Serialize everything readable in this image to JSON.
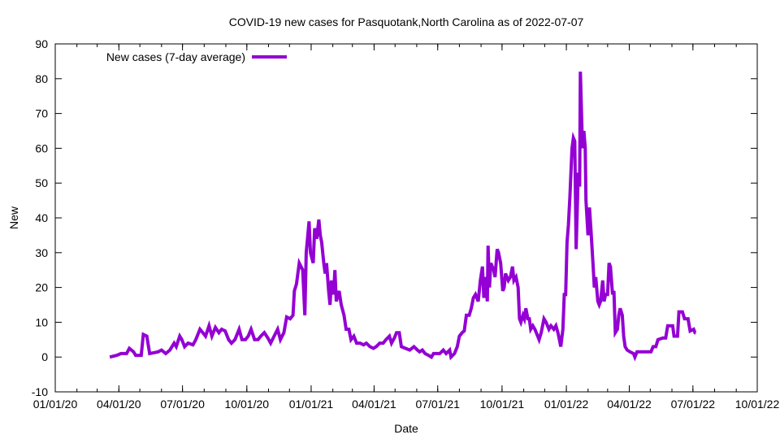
{
  "chart_data": {
    "type": "line",
    "title": "COVID-19 new cases for Pasquotank,North Carolina as of 2022-07-07",
    "xlabel": "Date",
    "ylabel": "New",
    "x_origin": "2020-01-01",
    "x_unit": "days since 2020-01-01",
    "xlim": [
      0,
      1004
    ],
    "ylim": [
      -10,
      90
    ],
    "y_ticks": [
      -10,
      0,
      10,
      20,
      30,
      40,
      50,
      60,
      70,
      80,
      90
    ],
    "x_ticks": [
      {
        "day": 0,
        "label": "01/01/20"
      },
      {
        "day": 91,
        "label": "04/01/20"
      },
      {
        "day": 182,
        "label": "07/01/20"
      },
      {
        "day": 274,
        "label": "10/01/20"
      },
      {
        "day": 366,
        "label": "01/01/21"
      },
      {
        "day": 456,
        "label": "04/01/21"
      },
      {
        "day": 547,
        "label": "07/01/21"
      },
      {
        "day": 639,
        "label": "10/01/21"
      },
      {
        "day": 731,
        "label": "01/01/22"
      },
      {
        "day": 821,
        "label": "04/01/22"
      },
      {
        "day": 912,
        "label": "07/01/22"
      },
      {
        "day": 1004,
        "label": "10/01/22"
      }
    ],
    "grid": false,
    "legend_position": "top-left",
    "series": [
      {
        "name": "New cases (7-day average)",
        "color": "#9400d3",
        "points": [
          [
            78,
            0
          ],
          [
            88,
            0.5
          ],
          [
            94,
            1
          ],
          [
            102,
            1
          ],
          [
            106,
            2.5
          ],
          [
            112,
            1.5
          ],
          [
            115,
            0.5
          ],
          [
            123,
            0.5
          ],
          [
            126,
            6.5
          ],
          [
            131,
            6
          ],
          [
            135,
            1
          ],
          [
            147,
            1.5
          ],
          [
            152,
            2
          ],
          [
            158,
            1
          ],
          [
            164,
            2
          ],
          [
            170,
            4
          ],
          [
            173,
            3
          ],
          [
            178,
            6
          ],
          [
            181,
            5
          ],
          [
            185,
            3
          ],
          [
            190,
            4
          ],
          [
            197,
            3.5
          ],
          [
            201,
            5
          ],
          [
            207,
            8
          ],
          [
            211,
            7
          ],
          [
            215,
            6
          ],
          [
            220,
            9
          ],
          [
            224,
            6
          ],
          [
            229,
            8.5
          ],
          [
            234,
            7
          ],
          [
            238,
            8
          ],
          [
            243,
            7.5
          ],
          [
            248,
            5
          ],
          [
            252,
            4
          ],
          [
            257,
            5
          ],
          [
            263,
            8
          ],
          [
            267,
            5
          ],
          [
            272,
            5
          ],
          [
            276,
            6
          ],
          [
            280,
            8
          ],
          [
            285,
            5
          ],
          [
            290,
            5
          ],
          [
            294,
            6
          ],
          [
            299,
            7
          ],
          [
            304,
            5.5
          ],
          [
            308,
            4
          ],
          [
            313,
            6
          ],
          [
            318,
            8
          ],
          [
            322,
            5
          ],
          [
            327,
            7
          ],
          [
            331,
            11.5
          ],
          [
            336,
            11
          ],
          [
            340,
            12
          ],
          [
            342,
            19
          ],
          [
            345,
            21
          ],
          [
            349,
            27
          ],
          [
            354,
            25
          ],
          [
            357,
            12
          ],
          [
            359,
            30
          ],
          [
            363,
            39
          ],
          [
            365,
            30
          ],
          [
            369,
            27
          ],
          [
            371,
            37
          ],
          [
            374,
            34
          ],
          [
            377,
            39.5
          ],
          [
            379,
            35
          ],
          [
            381,
            33
          ],
          [
            384,
            27
          ],
          [
            386,
            24
          ],
          [
            388,
            27
          ],
          [
            391,
            19
          ],
          [
            393,
            15
          ],
          [
            395,
            22
          ],
          [
            398,
            18
          ],
          [
            400,
            25
          ],
          [
            402,
            16
          ],
          [
            406,
            19
          ],
          [
            409,
            15
          ],
          [
            413,
            12
          ],
          [
            416,
            8
          ],
          [
            420,
            8
          ],
          [
            423,
            5
          ],
          [
            427,
            6
          ],
          [
            431,
            4
          ],
          [
            436,
            4
          ],
          [
            441,
            3.5
          ],
          [
            445,
            4
          ],
          [
            450,
            3
          ],
          [
            455,
            2.5
          ],
          [
            459,
            3
          ],
          [
            464,
            4
          ],
          [
            469,
            4
          ],
          [
            473,
            5
          ],
          [
            478,
            6
          ],
          [
            481,
            4
          ],
          [
            485,
            5.5
          ],
          [
            488,
            7
          ],
          [
            492,
            7
          ],
          [
            495,
            3
          ],
          [
            501,
            2.5
          ],
          [
            507,
            2
          ],
          [
            513,
            3
          ],
          [
            518,
            2
          ],
          [
            521,
            1.5
          ],
          [
            525,
            2
          ],
          [
            529,
            1
          ],
          [
            534,
            0.5
          ],
          [
            538,
            0
          ],
          [
            541,
            1
          ],
          [
            545,
            1
          ],
          [
            550,
            1
          ],
          [
            555,
            2
          ],
          [
            559,
            1
          ],
          [
            564,
            2
          ],
          [
            566,
            0
          ],
          [
            571,
            1
          ],
          [
            575,
            3
          ],
          [
            578,
            6
          ],
          [
            582,
            7
          ],
          [
            585,
            7.5
          ],
          [
            588,
            12
          ],
          [
            592,
            12
          ],
          [
            595,
            14
          ],
          [
            598,
            17
          ],
          [
            601,
            18
          ],
          [
            605,
            16
          ],
          [
            608,
            22
          ],
          [
            611,
            26
          ],
          [
            613,
            17
          ],
          [
            615,
            23
          ],
          [
            618,
            16
          ],
          [
            619,
            32
          ],
          [
            621,
            20
          ],
          [
            623,
            27
          ],
          [
            627,
            25
          ],
          [
            629,
            23
          ],
          [
            632,
            31
          ],
          [
            634,
            30
          ],
          [
            637,
            27
          ],
          [
            640,
            19
          ],
          [
            642,
            20
          ],
          [
            644,
            24
          ],
          [
            648,
            22
          ],
          [
            651,
            23
          ],
          [
            654,
            26
          ],
          [
            656,
            22
          ],
          [
            659,
            23
          ],
          [
            662,
            20
          ],
          [
            664,
            11
          ],
          [
            666,
            10
          ],
          [
            669,
            12
          ],
          [
            671,
            11
          ],
          [
            673,
            14
          ],
          [
            676,
            11
          ],
          [
            678,
            11
          ],
          [
            680,
            8
          ],
          [
            683,
            9
          ],
          [
            686,
            8
          ],
          [
            690,
            6
          ],
          [
            692,
            5
          ],
          [
            695,
            7
          ],
          [
            699,
            11
          ],
          [
            702,
            10
          ],
          [
            706,
            8
          ],
          [
            709,
            9
          ],
          [
            713,
            8
          ],
          [
            716,
            9
          ],
          [
            719,
            7
          ],
          [
            721,
            5
          ],
          [
            723,
            3
          ],
          [
            726,
            8
          ],
          [
            728,
            18
          ],
          [
            730,
            18
          ],
          [
            732,
            33
          ],
          [
            734,
            38
          ],
          [
            736,
            46
          ],
          [
            739,
            60
          ],
          [
            741,
            63
          ],
          [
            743,
            62
          ],
          [
            745,
            31
          ],
          [
            748,
            53
          ],
          [
            750,
            49
          ],
          [
            751,
            82
          ],
          [
            754,
            60
          ],
          [
            756,
            65
          ],
          [
            758,
            60
          ],
          [
            759,
            45
          ],
          [
            762,
            35
          ],
          [
            764,
            43
          ],
          [
            766,
            37
          ],
          [
            769,
            27
          ],
          [
            771,
            20
          ],
          [
            773,
            23
          ],
          [
            776,
            16
          ],
          [
            778,
            15
          ],
          [
            780,
            16
          ],
          [
            783,
            22
          ],
          [
            785,
            16
          ],
          [
            787,
            18
          ],
          [
            790,
            18
          ],
          [
            792,
            27
          ],
          [
            794,
            26
          ],
          [
            797,
            18
          ],
          [
            799,
            19
          ],
          [
            801,
            7
          ],
          [
            804,
            8
          ],
          [
            806,
            12
          ],
          [
            808,
            14
          ],
          [
            811,
            12
          ],
          [
            813,
            6
          ],
          [
            815,
            3
          ],
          [
            818,
            2
          ],
          [
            822,
            1.5
          ],
          [
            827,
            1
          ],
          [
            829,
            0
          ],
          [
            832,
            1.5
          ],
          [
            839,
            1.5
          ],
          [
            848,
            1.5
          ],
          [
            852,
            1.5
          ],
          [
            855,
            3
          ],
          [
            859,
            3
          ],
          [
            862,
            5
          ],
          [
            869,
            5.5
          ],
          [
            873,
            5.5
          ],
          [
            876,
            9
          ],
          [
            883,
            9
          ],
          [
            885,
            6
          ],
          [
            890,
            6
          ],
          [
            892,
            13
          ],
          [
            897,
            13
          ],
          [
            900,
            11
          ],
          [
            905,
            11
          ],
          [
            908,
            7.5
          ],
          [
            913,
            8
          ],
          [
            915,
            7
          ],
          [
            916,
            7
          ]
        ]
      }
    ]
  }
}
